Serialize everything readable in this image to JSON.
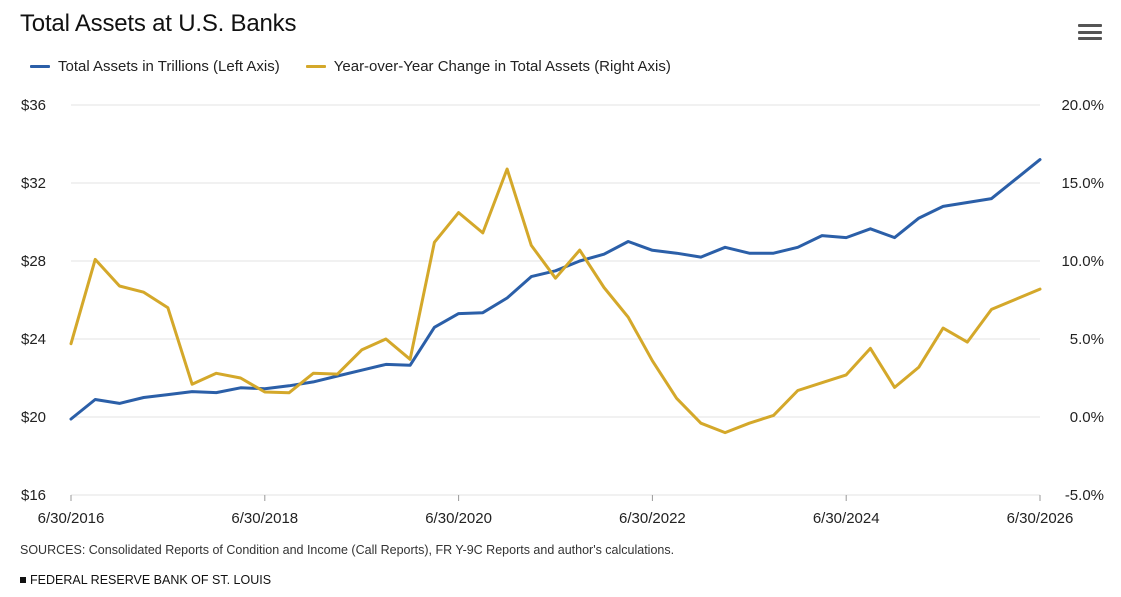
{
  "chart": {
    "title": "Total Assets at U.S. Banks",
    "menu_icon": "hamburger-menu-icon",
    "sources": "SOURCES: Consolidated Reports of Condition and Income (Call Reports), FR Y-9C Reports and author's calculations.",
    "footer": "FEDERAL RESERVE BANK OF ST. LOUIS"
  },
  "chart_data": {
    "type": "line",
    "title": "Total Assets at U.S. Banks",
    "x_ticks": [
      "6/30/2016",
      "6/30/2018",
      "6/30/2020",
      "6/30/2022",
      "6/30/2024",
      "6/30/2026"
    ],
    "x_range": [
      2016.5,
      2026.5
    ],
    "y_left": {
      "ticks": [
        "$16",
        "$20",
        "$24",
        "$28",
        "$32",
        "$36"
      ],
      "range": [
        16,
        36
      ]
    },
    "y_right": {
      "ticks": [
        "-5.0%",
        "0.0%",
        "5.0%",
        "10.0%",
        "15.0%",
        "20.0%"
      ],
      "range": [
        -5,
        20
      ]
    },
    "grid": true,
    "legend_position": "top-left",
    "series": [
      {
        "name": "Total Assets in Trillions (Left Axis)",
        "axis": "left",
        "color": "#2b5fa8",
        "x": [
          2016.5,
          2016.75,
          2017.0,
          2017.25,
          2017.5,
          2017.75,
          2018.0,
          2018.25,
          2018.5,
          2018.75,
          2019.0,
          2019.25,
          2019.5,
          2019.75,
          2020.0,
          2020.25,
          2020.5,
          2020.75,
          2021.0,
          2021.25,
          2021.5,
          2021.75,
          2022.0,
          2022.25,
          2022.5,
          2022.75,
          2023.0,
          2023.25,
          2023.5,
          2023.75,
          2024.0,
          2024.25,
          2024.5,
          2024.75,
          2025.0,
          2025.25,
          2025.5,
          2025.75,
          2026.0,
          2026.5
        ],
        "values": [
          19.9,
          20.9,
          20.7,
          21.0,
          21.15,
          21.3,
          21.25,
          21.5,
          21.45,
          21.6,
          21.8,
          22.1,
          22.4,
          22.7,
          22.65,
          24.6,
          25.3,
          25.35,
          26.1,
          27.2,
          27.5,
          28.0,
          28.35,
          29.0,
          28.55,
          28.4,
          28.2,
          28.7,
          28.4,
          28.4,
          28.7,
          29.3,
          29.2,
          29.65,
          29.2,
          30.2,
          30.8,
          31.0,
          31.2,
          33.2
        ]
      },
      {
        "name": "Year-over-Year Change in Total Assets (Right Axis)",
        "axis": "right",
        "color": "#d4a82a",
        "x": [
          2016.5,
          2016.75,
          2017.0,
          2017.25,
          2017.5,
          2017.75,
          2018.0,
          2018.25,
          2018.5,
          2018.75,
          2019.0,
          2019.25,
          2019.5,
          2019.75,
          2020.0,
          2020.25,
          2020.5,
          2020.75,
          2021.0,
          2021.25,
          2021.5,
          2021.75,
          2022.0,
          2022.25,
          2022.5,
          2022.75,
          2023.0,
          2023.25,
          2023.5,
          2023.75,
          2024.0,
          2024.25,
          2024.5,
          2024.75,
          2025.0,
          2025.25,
          2025.5,
          2025.75,
          2026.0,
          2026.5
        ],
        "values": [
          4.7,
          10.1,
          8.4,
          8.0,
          7.0,
          2.1,
          2.8,
          2.5,
          1.6,
          1.55,
          2.8,
          2.75,
          4.3,
          5.0,
          3.7,
          11.2,
          13.1,
          11.8,
          15.9,
          11.0,
          8.9,
          10.7,
          8.3,
          6.4,
          3.6,
          1.2,
          -0.4,
          -1.0,
          -0.4,
          0.1,
          1.7,
          2.2,
          2.7,
          4.4,
          1.9,
          3.2,
          5.7,
          4.8,
          6.9,
          8.2
        ]
      }
    ]
  }
}
